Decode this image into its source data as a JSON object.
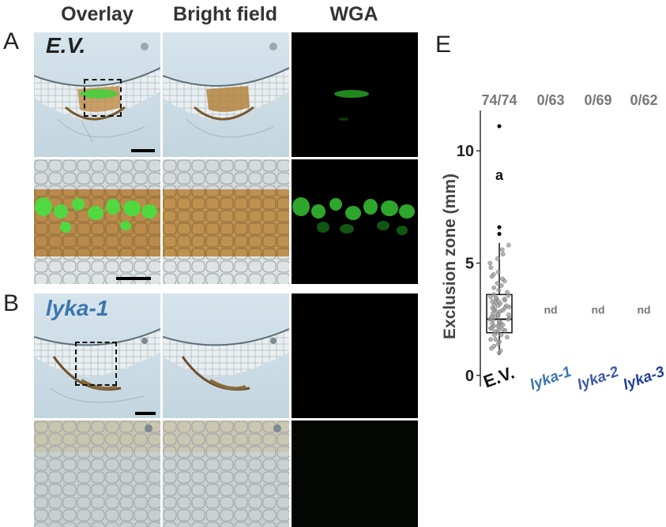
{
  "columns": [
    "Overlay",
    "Bright field",
    "WGA"
  ],
  "panels": {
    "A": {
      "letter": "A",
      "genotype": "E.V.",
      "genotype_color": "#222222"
    },
    "B": {
      "letter": "B",
      "genotype": "lyka-1",
      "genotype_color": "#3b76b0"
    },
    "E": {
      "letter": "E"
    }
  },
  "colors": {
    "wga_green": "#39d83a",
    "tissue_brown": "#b3813e",
    "background_blue": "#cfe0ea"
  },
  "chart_data": {
    "type": "box",
    "ylabel": "Exclusion zone (mm)",
    "ylim": [
      -0.5,
      11.8
    ],
    "yticks": [
      0,
      5,
      10
    ],
    "categories": [
      "E.V.",
      "lyka-1",
      "lyka-2",
      "lyka-3"
    ],
    "category_colors": [
      "#111111",
      "#3b76b0",
      "#3d5aa8",
      "#1f3d9a"
    ],
    "ratios": [
      "74/74",
      "0/63",
      "0/69",
      "0/62"
    ],
    "annotations": [
      "nd",
      "nd",
      "nd"
    ],
    "significance_letter": "a",
    "box": {
      "category": "E.V.",
      "q1": 1.9,
      "median": 2.5,
      "q3": 3.6,
      "whisker_low": 0.9,
      "whisker_high": 5.9
    },
    "outliers": [
      6.3,
      6.6,
      11.1
    ],
    "points": [
      1.0,
      1.1,
      1.2,
      1.3,
      1.4,
      1.5,
      1.6,
      1.7,
      1.8,
      1.9,
      1.95,
      2.0,
      2.05,
      2.1,
      2.15,
      2.2,
      2.25,
      2.3,
      2.35,
      2.4,
      2.45,
      2.5,
      2.5,
      2.55,
      2.6,
      2.65,
      2.7,
      2.75,
      2.8,
      2.85,
      2.9,
      2.95,
      3.0,
      3.05,
      3.1,
      3.15,
      3.2,
      3.25,
      3.3,
      3.35,
      3.4,
      3.45,
      3.5,
      3.55,
      3.6,
      3.7,
      3.8,
      3.9,
      4.0,
      4.1,
      4.2,
      4.3,
      4.4,
      4.5,
      4.6,
      4.8,
      5.0,
      5.2,
      5.4,
      5.6,
      5.8,
      1.6,
      2.0,
      2.3,
      2.7,
      3.1,
      3.3,
      2.2,
      1.8,
      2.9,
      3.4,
      2.1,
      2.6,
      3.0
    ]
  }
}
